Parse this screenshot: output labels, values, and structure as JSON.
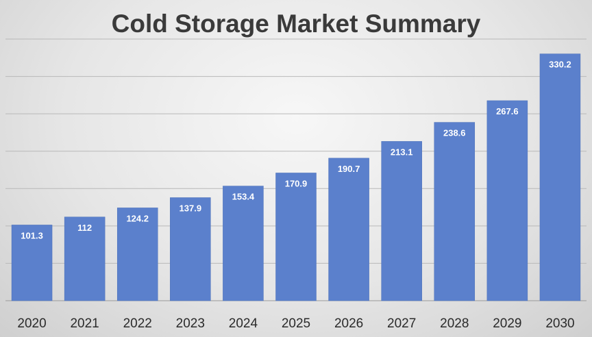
{
  "chart_data": {
    "type": "bar",
    "title": "Cold Storage Market Summary",
    "categories": [
      "2020",
      "2021",
      "2022",
      "2023",
      "2024",
      "2025",
      "2026",
      "2027",
      "2028",
      "2029",
      "2030"
    ],
    "values": [
      101.3,
      112,
      124.2,
      137.9,
      153.4,
      170.9,
      190.7,
      213.1,
      238.6,
      267.6,
      330.2
    ],
    "xlabel": "",
    "ylabel": "",
    "ylim": [
      0,
      350
    ],
    "grid": true,
    "legend": "none",
    "bar_color": "#5b80cc",
    "data_label_color": "#ffffff"
  }
}
